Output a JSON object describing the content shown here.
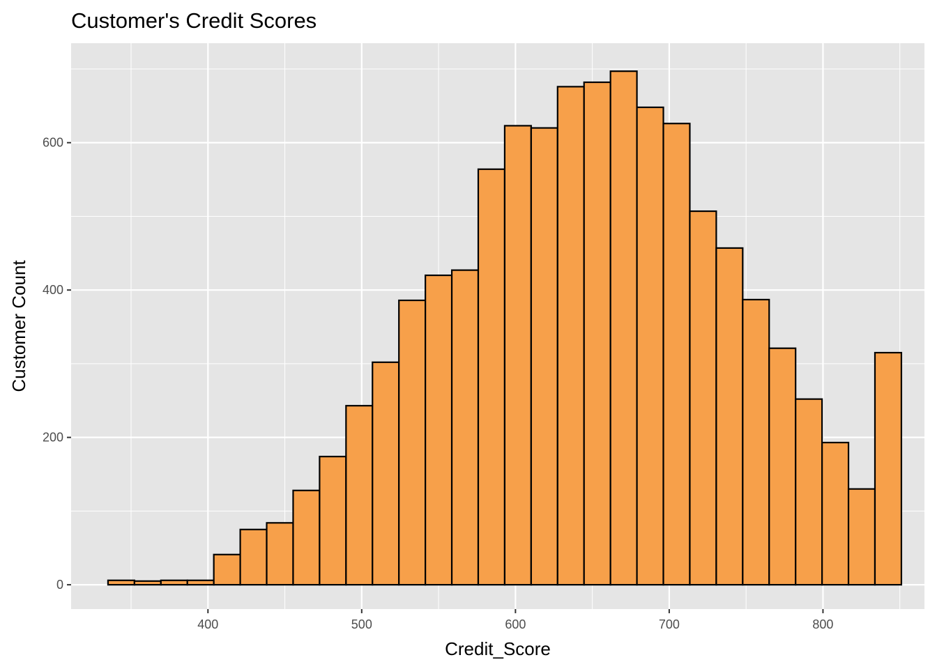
{
  "chart_data": {
    "type": "bar",
    "subtype": "histogram",
    "title": "Customer's Credit Scores",
    "xlabel": "Credit_Score",
    "ylabel": "Customer Count",
    "xlim": [
      311,
      866
    ],
    "ylim": [
      -33,
      735
    ],
    "x_ticks": [
      400,
      500,
      600,
      700,
      800
    ],
    "y_ticks": [
      0,
      200,
      400,
      600
    ],
    "grid": true,
    "colors": {
      "panel_background": "#e5e5e5",
      "grid": "#ffffff",
      "bar_fill": "#f7a04a",
      "bar_stroke": "#000000",
      "tick_label": "#4d4d4d"
    },
    "bins": [
      {
        "start": 335.0,
        "end": 352.2,
        "count": 6
      },
      {
        "start": 352.2,
        "end": 369.4,
        "count": 5
      },
      {
        "start": 369.4,
        "end": 386.6,
        "count": 6
      },
      {
        "start": 386.6,
        "end": 403.8,
        "count": 6
      },
      {
        "start": 403.8,
        "end": 421.0,
        "count": 41
      },
      {
        "start": 421.0,
        "end": 438.2,
        "count": 75
      },
      {
        "start": 438.2,
        "end": 455.4,
        "count": 84
      },
      {
        "start": 455.4,
        "end": 472.6,
        "count": 128
      },
      {
        "start": 472.6,
        "end": 489.8,
        "count": 174
      },
      {
        "start": 489.8,
        "end": 507.0,
        "count": 243
      },
      {
        "start": 507.0,
        "end": 524.2,
        "count": 302
      },
      {
        "start": 524.2,
        "end": 541.4,
        "count": 386
      },
      {
        "start": 541.4,
        "end": 558.6,
        "count": 420
      },
      {
        "start": 558.6,
        "end": 575.8,
        "count": 427
      },
      {
        "start": 575.8,
        "end": 593.0,
        "count": 564
      },
      {
        "start": 593.0,
        "end": 610.2,
        "count": 623
      },
      {
        "start": 610.2,
        "end": 627.4,
        "count": 620
      },
      {
        "start": 627.4,
        "end": 644.6,
        "count": 676
      },
      {
        "start": 644.6,
        "end": 661.8,
        "count": 682
      },
      {
        "start": 661.8,
        "end": 679.0,
        "count": 697
      },
      {
        "start": 679.0,
        "end": 696.2,
        "count": 648
      },
      {
        "start": 696.2,
        "end": 713.4,
        "count": 626
      },
      {
        "start": 713.4,
        "end": 730.6,
        "count": 507
      },
      {
        "start": 730.6,
        "end": 747.8,
        "count": 457
      },
      {
        "start": 747.8,
        "end": 765.0,
        "count": 387
      },
      {
        "start": 765.0,
        "end": 782.2,
        "count": 321
      },
      {
        "start": 782.2,
        "end": 799.4,
        "count": 252
      },
      {
        "start": 799.4,
        "end": 816.6,
        "count": 193
      },
      {
        "start": 816.6,
        "end": 833.8,
        "count": 130
      },
      {
        "start": 833.8,
        "end": 851.0,
        "count": 315
      }
    ]
  }
}
